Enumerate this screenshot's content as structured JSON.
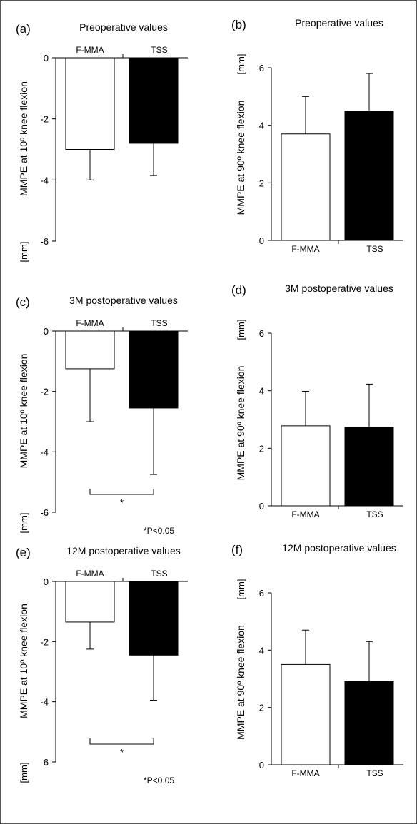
{
  "chart_data": [
    {
      "panel_label": "(a)",
      "title": "Preoperative values",
      "type": "bar",
      "categories": [
        "F-MMA",
        "TSS"
      ],
      "values": [
        -3.0,
        -2.8
      ],
      "errors": [
        1.0,
        1.05
      ],
      "bar_colors": [
        "#ffffff",
        "#000000"
      ],
      "ylabel": "MMPE at 10º  knee flexion",
      "yunit": "[mm]",
      "ylim": [
        -6,
        0
      ],
      "yticks": [
        "0",
        "-2",
        "-4",
        "-6"
      ],
      "tick_values": [
        0,
        -2,
        -4,
        -6
      ],
      "significance": null,
      "footnote": ""
    },
    {
      "panel_label": "(b)",
      "title": "Preoperative values",
      "type": "bar",
      "categories": [
        "F-MMA",
        "TSS"
      ],
      "values": [
        3.7,
        4.5
      ],
      "errors": [
        1.3,
        1.3
      ],
      "bar_colors": [
        "#ffffff",
        "#000000"
      ],
      "ylabel": "MMPE at 90º knee flexion",
      "yunit": "[mm]",
      "ylim": [
        0,
        6
      ],
      "yticks": [
        "0",
        "2",
        "4",
        "6"
      ],
      "tick_values": [
        0,
        2,
        4,
        6
      ],
      "significance": null,
      "footnote": ""
    },
    {
      "panel_label": "(c)",
      "title": "3M postoperative values",
      "type": "bar",
      "categories": [
        "F-MMA",
        "TSS"
      ],
      "values": [
        -1.25,
        -2.55
      ],
      "errors": [
        1.75,
        2.2
      ],
      "bar_colors": [
        "#ffffff",
        "#000000"
      ],
      "ylabel": "MMPE at 10º  knee flexion",
      "yunit": "[mm]",
      "ylim": [
        -6,
        0
      ],
      "yticks": [
        "0",
        "-2",
        "-4",
        "-6"
      ],
      "tick_values": [
        0,
        -2,
        -4,
        -6
      ],
      "significance": "*",
      "footnote": "*P<0.05"
    },
    {
      "panel_label": "(d)",
      "title": "3M postoperative values",
      "type": "bar",
      "categories": [
        "F-MMA",
        "TSS"
      ],
      "values": [
        2.78,
        2.73
      ],
      "errors": [
        1.2,
        1.5
      ],
      "bar_colors": [
        "#ffffff",
        "#000000"
      ],
      "ylabel": "MMPE at 90º  knee flexion",
      "yunit": "[mm]",
      "ylim": [
        0,
        6
      ],
      "yticks": [
        "0",
        "2",
        "4",
        "6"
      ],
      "tick_values": [
        0,
        2,
        4,
        6
      ],
      "significance": null,
      "footnote": ""
    },
    {
      "panel_label": "(e)",
      "title": "12M postoperative values",
      "type": "bar",
      "categories": [
        "F-MMA",
        "TSS"
      ],
      "values": [
        -1.35,
        -2.45
      ],
      "errors": [
        0.9,
        1.5
      ],
      "bar_colors": [
        "#ffffff",
        "#000000"
      ],
      "ylabel": "MMPE at 10º  knee flexion",
      "yunit": "[mm]",
      "ylim": [
        -6,
        0
      ],
      "yticks": [
        "0",
        "-2",
        "-4",
        "-6"
      ],
      "tick_values": [
        0,
        -2,
        -4,
        -6
      ],
      "significance": "*",
      "footnote": "*P<0.05"
    },
    {
      "panel_label": "(f)",
      "title": "12M postoperative values",
      "type": "bar",
      "categories": [
        "F-MMA",
        "TSS"
      ],
      "values": [
        3.5,
        2.9
      ],
      "errors": [
        1.2,
        1.4
      ],
      "bar_colors": [
        "#ffffff",
        "#000000"
      ],
      "ylabel": "MMPE at 90º knee flexion",
      "yunit": "[mm]",
      "ylim": [
        0,
        6
      ],
      "yticks": [
        "0",
        "2",
        "4",
        "6"
      ],
      "tick_values": [
        0,
        2,
        4,
        6
      ],
      "significance": null,
      "footnote": ""
    }
  ]
}
